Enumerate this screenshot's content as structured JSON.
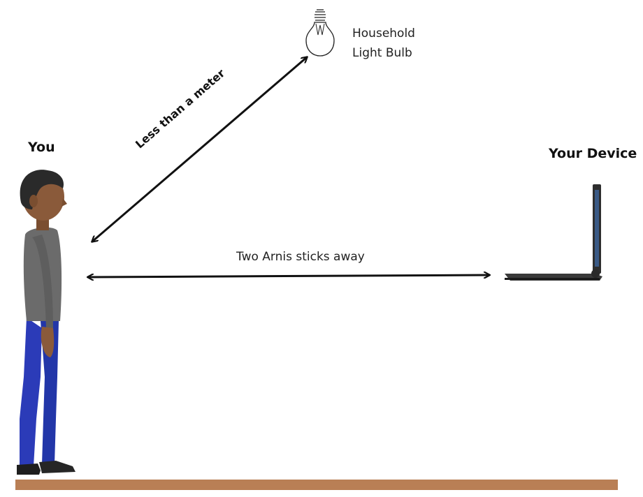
{
  "labels": {
    "you": "You",
    "device": "Your Device",
    "bulb_line1": "Household",
    "bulb_line2": "Light Bulb",
    "diagonal_distance": "Less than a meter",
    "horizontal_distance": "Two Arnis sticks away"
  },
  "colors": {
    "floor": "#b97f55",
    "arrow": "#111111",
    "shirt": "#6b6b6b",
    "pants": "#2b3bb8",
    "skin": "#8a5a3a",
    "hair": "#2a2a2a"
  },
  "icons": [
    "light-bulb-icon",
    "person-figure",
    "laptop-icon"
  ]
}
